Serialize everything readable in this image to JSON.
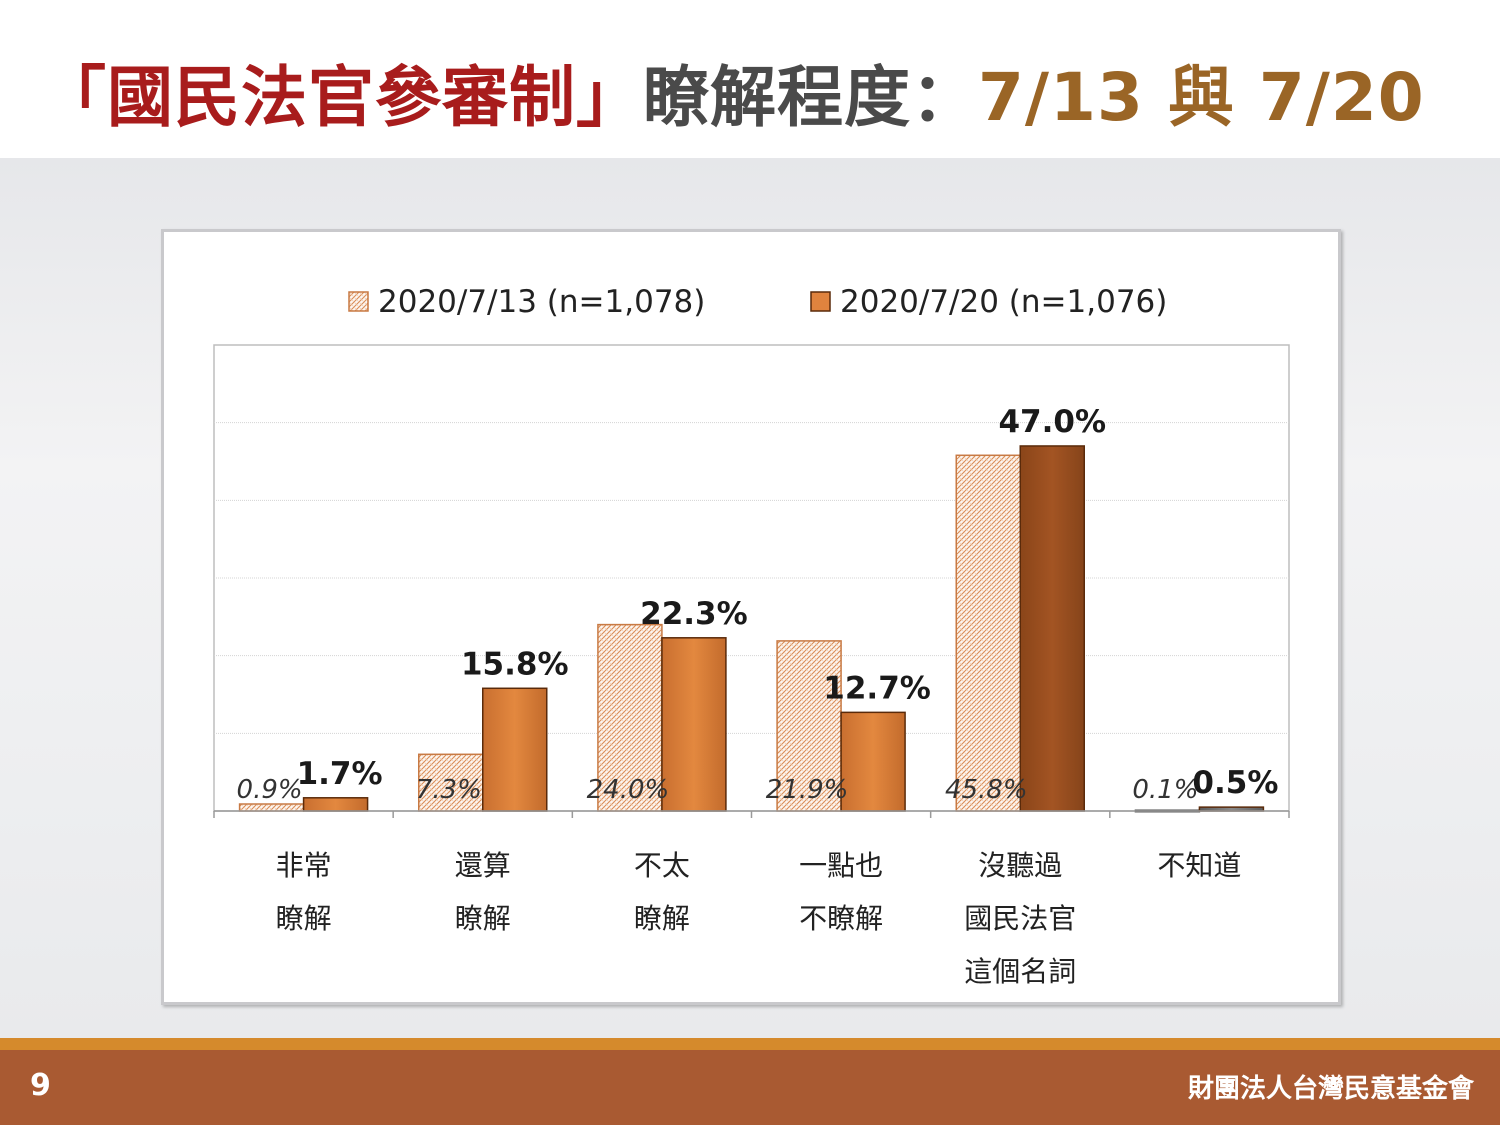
{
  "title": {
    "part1": "「國民法官參審制」",
    "part2": "瞭解程度：",
    "part3": "7/13 與 7/20"
  },
  "footer": {
    "page_number": "9",
    "organization": "財團法人台灣民意基金會"
  },
  "colors": {
    "title_red": "#a81c1c",
    "title_gray": "#4a4a4a",
    "title_gold": "#9a6526",
    "series1_hatch": "#d98a52",
    "series2_fill": "#e0833e",
    "series2_dark_fill": "#9a4f1f",
    "footer_bar": "#a95a32",
    "footer_stripe": "#d58a2c"
  },
  "chart_data": {
    "type": "bar",
    "categories": [
      [
        "非常",
        "瞭解"
      ],
      [
        "還算",
        "瞭解"
      ],
      [
        "不太",
        "瞭解"
      ],
      [
        "一點也",
        "不瞭解"
      ],
      [
        "沒聽過",
        "國民法官",
        "這個名詞"
      ],
      [
        "不知道"
      ]
    ],
    "series": [
      {
        "name": "2020/7/13 (n=1,078)",
        "values": [
          0.9,
          7.3,
          24.0,
          21.9,
          45.8,
          0.1
        ],
        "labels": [
          "0.9%",
          "7.3%",
          "24.0%",
          "21.9%",
          "45.8%",
          "0.1%"
        ],
        "style": "hatched"
      },
      {
        "name": "2020/7/20 (n=1,076)",
        "values": [
          1.7,
          15.8,
          22.3,
          12.7,
          47.0,
          0.5
        ],
        "labels": [
          "1.7%",
          "15.8%",
          "22.3%",
          "12.7%",
          "47.0%",
          "0.5%"
        ],
        "style": "solid"
      }
    ],
    "ylim": [
      0,
      60
    ],
    "grid": true,
    "legend_position": "top"
  }
}
